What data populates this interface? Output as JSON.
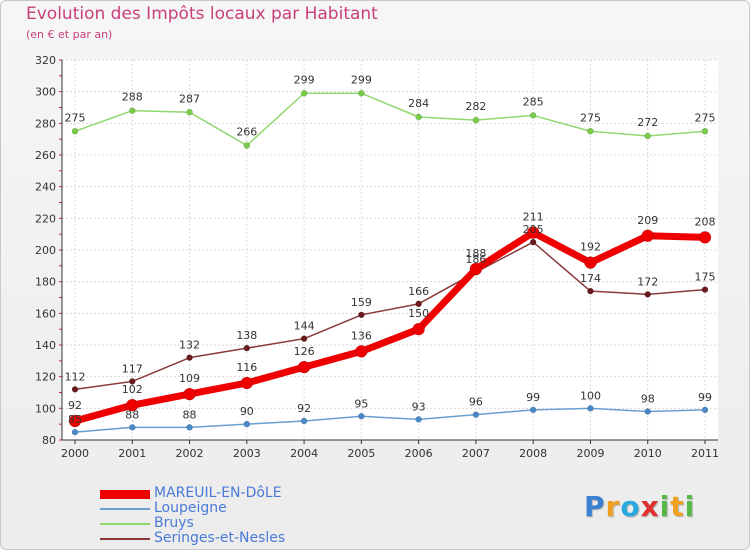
{
  "title": "Evolution des Impôts locaux par Habitant",
  "subtitle": "(en € et par an)",
  "logo": {
    "letters": [
      {
        "ch": "P",
        "color": "#3a7fd0"
      },
      {
        "ch": "r",
        "color": "#f0a020"
      },
      {
        "ch": "o",
        "color": "#2aa8e0"
      },
      {
        "ch": "x",
        "color": "#e03030"
      },
      {
        "ch": "i",
        "color": "#58b848"
      },
      {
        "ch": "t",
        "color": "#f0a020"
      },
      {
        "ch": "i",
        "color": "#58b848"
      }
    ]
  },
  "chart_data": {
    "type": "line",
    "x": [
      "2000",
      "2001",
      "2002",
      "2003",
      "2004",
      "2005",
      "2006",
      "2007",
      "2008",
      "2009",
      "2010",
      "2011"
    ],
    "ylim": [
      80,
      320
    ],
    "yticks": [
      80,
      100,
      120,
      140,
      160,
      180,
      200,
      220,
      240,
      260,
      280,
      300,
      320
    ],
    "grid": true,
    "legend_position": "bottom-left",
    "series": [
      {
        "name": "Bruys",
        "color": "#90d870",
        "marker": "#78cc48",
        "width": 1.5,
        "radius": 3,
        "values": [
          275,
          288,
          287,
          266,
          299,
          299,
          284,
          282,
          285,
          275,
          272,
          275
        ]
      },
      {
        "name": "Seringes-et-Nesles",
        "color": "#8a3a3a",
        "marker": "#6a1a1a",
        "width": 1.5,
        "radius": 3,
        "values": [
          112,
          117,
          132,
          138,
          144,
          159,
          166,
          186,
          205,
          174,
          172,
          175
        ]
      },
      {
        "name": "Loupeigne",
        "color": "#6a9fd0",
        "marker": "#4a88c8",
        "width": 1.5,
        "radius": 3,
        "values": [
          85,
          88,
          88,
          90,
          92,
          95,
          93,
          96,
          99,
          100,
          98,
          99
        ]
      },
      {
        "name": "MAREUIL-EN-DôLE",
        "color": "#ee0000",
        "marker": "#ee0000",
        "width": 7,
        "radius": 6,
        "values": [
          92,
          102,
          109,
          116,
          126,
          136,
          150,
          188,
          211,
          192,
          209,
          208
        ]
      }
    ],
    "labels": [
      {
        "series": "Bruys",
        "values": [
          275,
          288,
          287,
          266,
          299,
          299,
          284,
          282,
          285,
          275,
          272,
          275
        ]
      },
      {
        "series": "Seringes-et-Nesles",
        "values": [
          112,
          117,
          132,
          138,
          144,
          159,
          166,
          186,
          205,
          174,
          172,
          175
        ]
      },
      {
        "series": "Loupeigne",
        "values": [
          85,
          88,
          88,
          90,
          92,
          95,
          93,
          96,
          99,
          100,
          98,
          99
        ]
      },
      {
        "series": "MAREUIL-EN-DôLE",
        "values": [
          92,
          102,
          109,
          116,
          126,
          136,
          150,
          188,
          211,
          192,
          209,
          208
        ]
      }
    ],
    "legend_order": [
      "MAREUIL-EN-DôLE",
      "Loupeigne",
      "Bruys",
      "Seringes-et-Nesles"
    ]
  }
}
